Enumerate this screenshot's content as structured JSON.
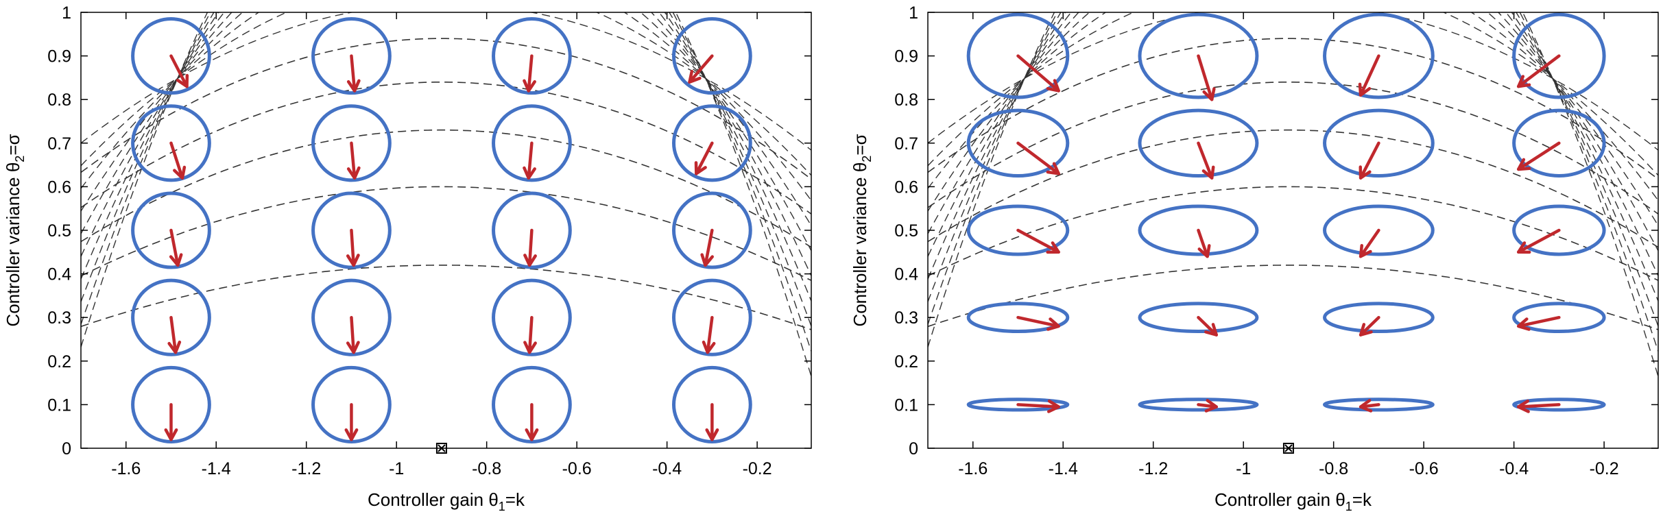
{
  "chart_data": [
    {
      "type": "scatter",
      "panel": "left",
      "xlabel": "Controller gain θ1=k",
      "ylabel": "Controller variance θ2=σ",
      "xlim": [
        -1.7,
        -0.08
      ],
      "ylim": [
        0,
        1
      ],
      "xticks": [
        "-1.6",
        "-1.4",
        "-1.2",
        "-1",
        "-0.8",
        "-0.6",
        "-0.4",
        "-0.2"
      ],
      "yticks": [
        "0",
        "0.1",
        "0.2",
        "0.3",
        "0.4",
        "0.5",
        "0.6",
        "0.7",
        "0.8",
        "0.9",
        "1"
      ],
      "grid": false,
      "optimum_marker": {
        "x": -0.9,
        "y": 0
      },
      "contours": [
        {
          "y_peak": 0.42,
          "curvature": 0.22,
          "x_peak": -0.9
        },
        {
          "y_peak": 0.6,
          "curvature": 0.32,
          "x_peak": -0.9
        },
        {
          "y_peak": 0.73,
          "curvature": 0.4,
          "x_peak": -0.9
        },
        {
          "y_peak": 0.84,
          "curvature": 0.45,
          "x_peak": -0.9
        },
        {
          "y_peak": 0.94,
          "curvature": 0.48,
          "x_peak": -0.9
        }
      ],
      "ellipses": [
        {
          "x": -1.5,
          "y": 0.1,
          "sx": 0.085,
          "sy": 0.085
        },
        {
          "x": -1.1,
          "y": 0.1,
          "sx": 0.085,
          "sy": 0.085
        },
        {
          "x": -0.7,
          "y": 0.1,
          "sx": 0.085,
          "sy": 0.085
        },
        {
          "x": -0.3,
          "y": 0.1,
          "sx": 0.085,
          "sy": 0.085
        },
        {
          "x": -1.5,
          "y": 0.3,
          "sx": 0.085,
          "sy": 0.085
        },
        {
          "x": -1.1,
          "y": 0.3,
          "sx": 0.085,
          "sy": 0.085
        },
        {
          "x": -0.7,
          "y": 0.3,
          "sx": 0.085,
          "sy": 0.085
        },
        {
          "x": -0.3,
          "y": 0.3,
          "sx": 0.085,
          "sy": 0.085
        },
        {
          "x": -1.5,
          "y": 0.5,
          "sx": 0.085,
          "sy": 0.085
        },
        {
          "x": -1.1,
          "y": 0.5,
          "sx": 0.085,
          "sy": 0.085
        },
        {
          "x": -0.7,
          "y": 0.5,
          "sx": 0.085,
          "sy": 0.085
        },
        {
          "x": -0.3,
          "y": 0.5,
          "sx": 0.085,
          "sy": 0.085
        },
        {
          "x": -1.5,
          "y": 0.7,
          "sx": 0.085,
          "sy": 0.085
        },
        {
          "x": -1.1,
          "y": 0.7,
          "sx": 0.085,
          "sy": 0.085
        },
        {
          "x": -0.7,
          "y": 0.7,
          "sx": 0.085,
          "sy": 0.085
        },
        {
          "x": -0.3,
          "y": 0.7,
          "sx": 0.085,
          "sy": 0.085
        },
        {
          "x": -1.5,
          "y": 0.9,
          "sx": 0.085,
          "sy": 0.085
        },
        {
          "x": -1.1,
          "y": 0.9,
          "sx": 0.085,
          "sy": 0.085
        },
        {
          "x": -0.7,
          "y": 0.9,
          "sx": 0.085,
          "sy": 0.085
        },
        {
          "x": -0.3,
          "y": 0.9,
          "sx": 0.085,
          "sy": 0.085
        }
      ],
      "arrows": [
        {
          "x": -1.5,
          "y": 0.1,
          "dx": 0.0,
          "dy": -0.08
        },
        {
          "x": -1.1,
          "y": 0.1,
          "dx": 0.0,
          "dy": -0.08
        },
        {
          "x": -0.7,
          "y": 0.1,
          "dx": 0.0,
          "dy": -0.08
        },
        {
          "x": -0.3,
          "y": 0.1,
          "dx": 0.0,
          "dy": -0.08
        },
        {
          "x": -1.5,
          "y": 0.3,
          "dx": 0.01,
          "dy": -0.08
        },
        {
          "x": -1.1,
          "y": 0.3,
          "dx": 0.005,
          "dy": -0.08
        },
        {
          "x": -0.7,
          "y": 0.3,
          "dx": -0.005,
          "dy": -0.08
        },
        {
          "x": -0.3,
          "y": 0.3,
          "dx": -0.01,
          "dy": -0.08
        },
        {
          "x": -1.5,
          "y": 0.5,
          "dx": 0.015,
          "dy": -0.08
        },
        {
          "x": -1.1,
          "y": 0.5,
          "dx": 0.005,
          "dy": -0.08
        },
        {
          "x": -0.7,
          "y": 0.5,
          "dx": -0.005,
          "dy": -0.08
        },
        {
          "x": -0.3,
          "y": 0.5,
          "dx": -0.015,
          "dy": -0.08
        },
        {
          "x": -1.5,
          "y": 0.7,
          "dx": 0.025,
          "dy": -0.08
        },
        {
          "x": -1.1,
          "y": 0.7,
          "dx": 0.007,
          "dy": -0.08
        },
        {
          "x": -0.7,
          "y": 0.7,
          "dx": -0.007,
          "dy": -0.08
        },
        {
          "x": -0.3,
          "y": 0.7,
          "dx": -0.035,
          "dy": -0.07
        },
        {
          "x": -1.5,
          "y": 0.9,
          "dx": 0.035,
          "dy": -0.07
        },
        {
          "x": -1.1,
          "y": 0.9,
          "dx": 0.007,
          "dy": -0.08
        },
        {
          "x": -0.7,
          "y": 0.9,
          "dx": -0.007,
          "dy": -0.08
        },
        {
          "x": -0.3,
          "y": 0.9,
          "dx": -0.05,
          "dy": -0.06
        }
      ]
    },
    {
      "type": "scatter",
      "panel": "right",
      "xlabel": "Controller gain θ1=k",
      "ylabel": "Controller variance θ2=σ",
      "xlim": [
        -1.7,
        -0.08
      ],
      "ylim": [
        0,
        1
      ],
      "xticks": [
        "-1.6",
        "-1.4",
        "-1.2",
        "-1",
        "-0.8",
        "-0.6",
        "-0.4",
        "-0.2"
      ],
      "yticks": [
        "0",
        "0.1",
        "0.2",
        "0.3",
        "0.4",
        "0.5",
        "0.6",
        "0.7",
        "0.8",
        "0.9",
        "1"
      ],
      "grid": false,
      "optimum_marker": {
        "x": -0.9,
        "y": 0
      },
      "contours": [
        {
          "y_peak": 0.42,
          "curvature": 0.22,
          "x_peak": -0.9
        },
        {
          "y_peak": 0.6,
          "curvature": 0.32,
          "x_peak": -0.9
        },
        {
          "y_peak": 0.73,
          "curvature": 0.4,
          "x_peak": -0.9
        },
        {
          "y_peak": 0.84,
          "curvature": 0.45,
          "x_peak": -0.9
        },
        {
          "y_peak": 0.94,
          "curvature": 0.48,
          "x_peak": -0.9
        }
      ],
      "ellipses": [
        {
          "x": -1.5,
          "y": 0.1,
          "sx": 0.11,
          "sy": 0.012
        },
        {
          "x": -1.1,
          "y": 0.1,
          "sx": 0.13,
          "sy": 0.012
        },
        {
          "x": -0.7,
          "y": 0.1,
          "sx": 0.12,
          "sy": 0.012
        },
        {
          "x": -0.3,
          "y": 0.1,
          "sx": 0.1,
          "sy": 0.012
        },
        {
          "x": -1.5,
          "y": 0.3,
          "sx": 0.11,
          "sy": 0.032
        },
        {
          "x": -1.1,
          "y": 0.3,
          "sx": 0.13,
          "sy": 0.032
        },
        {
          "x": -0.7,
          "y": 0.3,
          "sx": 0.12,
          "sy": 0.032
        },
        {
          "x": -0.3,
          "y": 0.3,
          "sx": 0.1,
          "sy": 0.032
        },
        {
          "x": -1.5,
          "y": 0.5,
          "sx": 0.11,
          "sy": 0.055
        },
        {
          "x": -1.1,
          "y": 0.5,
          "sx": 0.13,
          "sy": 0.055
        },
        {
          "x": -0.7,
          "y": 0.5,
          "sx": 0.12,
          "sy": 0.055
        },
        {
          "x": -0.3,
          "y": 0.5,
          "sx": 0.1,
          "sy": 0.055
        },
        {
          "x": -1.5,
          "y": 0.7,
          "sx": 0.11,
          "sy": 0.075
        },
        {
          "x": -1.1,
          "y": 0.7,
          "sx": 0.13,
          "sy": 0.075
        },
        {
          "x": -0.7,
          "y": 0.7,
          "sx": 0.12,
          "sy": 0.075
        },
        {
          "x": -0.3,
          "y": 0.7,
          "sx": 0.1,
          "sy": 0.075
        },
        {
          "x": -1.5,
          "y": 0.9,
          "sx": 0.11,
          "sy": 0.095
        },
        {
          "x": -1.1,
          "y": 0.9,
          "sx": 0.13,
          "sy": 0.095
        },
        {
          "x": -0.7,
          "y": 0.9,
          "sx": 0.12,
          "sy": 0.095
        },
        {
          "x": -0.3,
          "y": 0.9,
          "sx": 0.1,
          "sy": 0.095
        }
      ],
      "arrows": [
        {
          "x": -1.5,
          "y": 0.1,
          "dx": 0.09,
          "dy": -0.005
        },
        {
          "x": -1.1,
          "y": 0.1,
          "dx": 0.04,
          "dy": -0.005
        },
        {
          "x": -0.7,
          "y": 0.1,
          "dx": -0.04,
          "dy": -0.005
        },
        {
          "x": -0.3,
          "y": 0.1,
          "dx": -0.09,
          "dy": -0.005
        },
        {
          "x": -1.5,
          "y": 0.3,
          "dx": 0.09,
          "dy": -0.02
        },
        {
          "x": -1.1,
          "y": 0.3,
          "dx": 0.04,
          "dy": -0.04
        },
        {
          "x": -0.7,
          "y": 0.3,
          "dx": -0.04,
          "dy": -0.04
        },
        {
          "x": -0.3,
          "y": 0.3,
          "dx": -0.09,
          "dy": -0.02
        },
        {
          "x": -1.5,
          "y": 0.5,
          "dx": 0.09,
          "dy": -0.05
        },
        {
          "x": -1.1,
          "y": 0.5,
          "dx": 0.02,
          "dy": -0.06
        },
        {
          "x": -0.7,
          "y": 0.5,
          "dx": -0.04,
          "dy": -0.06
        },
        {
          "x": -0.3,
          "y": 0.5,
          "dx": -0.09,
          "dy": -0.05
        },
        {
          "x": -1.5,
          "y": 0.7,
          "dx": 0.09,
          "dy": -0.07
        },
        {
          "x": -1.1,
          "y": 0.7,
          "dx": 0.03,
          "dy": -0.08
        },
        {
          "x": -0.7,
          "y": 0.7,
          "dx": -0.04,
          "dy": -0.08
        },
        {
          "x": -0.3,
          "y": 0.7,
          "dx": -0.09,
          "dy": -0.06
        },
        {
          "x": -1.5,
          "y": 0.9,
          "dx": 0.09,
          "dy": -0.08
        },
        {
          "x": -1.1,
          "y": 0.9,
          "dx": 0.03,
          "dy": -0.1
        },
        {
          "x": -0.7,
          "y": 0.9,
          "dx": -0.04,
          "dy": -0.09
        },
        {
          "x": -0.3,
          "y": 0.9,
          "dx": -0.09,
          "dy": -0.07
        }
      ]
    }
  ],
  "colors": {
    "ellipse": "#4472c4",
    "arrow": "#c0282d",
    "contour": "#333333",
    "axis": "#000000"
  }
}
